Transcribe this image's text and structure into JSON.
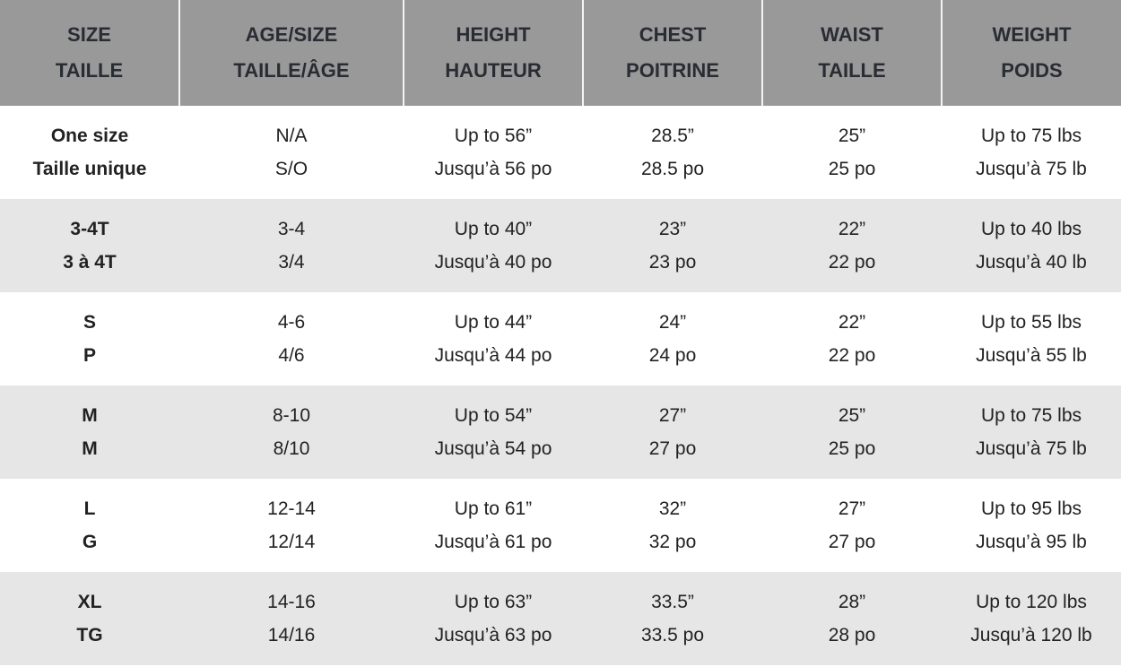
{
  "headers": [
    {
      "en": "SIZE",
      "fr": "TAILLE"
    },
    {
      "en": "AGE/SIZE",
      "fr": "TAILLE/ÂGE"
    },
    {
      "en": "HEIGHT",
      "fr": "HAUTEUR"
    },
    {
      "en": "CHEST",
      "fr": "POITRINE"
    },
    {
      "en": "WAIST",
      "fr": "TAILLE"
    },
    {
      "en": "WEIGHT",
      "fr": "POIDS"
    }
  ],
  "rows": [
    [
      {
        "en": "One size",
        "fr": "Taille unique"
      },
      {
        "en": "N/A",
        "fr": "S/O"
      },
      {
        "en": "Up to 56”",
        "fr": "Jusqu’à 56 po"
      },
      {
        "en": "28.5”",
        "fr": "28.5 po"
      },
      {
        "en": "25”",
        "fr": "25 po"
      },
      {
        "en": "Up to 75 lbs",
        "fr": "Jusqu’à 75 lb"
      }
    ],
    [
      {
        "en": "3-4T",
        "fr": "3 à 4T"
      },
      {
        "en": "3-4",
        "fr": "3/4"
      },
      {
        "en": "Up to 40”",
        "fr": "Jusqu’à 40 po"
      },
      {
        "en": "23”",
        "fr": "23 po"
      },
      {
        "en": "22”",
        "fr": "22 po"
      },
      {
        "en": "Up to 40 lbs",
        "fr": "Jusqu’à 40 lb"
      }
    ],
    [
      {
        "en": "S",
        "fr": "P"
      },
      {
        "en": "4-6",
        "fr": "4/6"
      },
      {
        "en": "Up to 44”",
        "fr": "Jusqu’à 44 po"
      },
      {
        "en": "24”",
        "fr": "24 po"
      },
      {
        "en": "22”",
        "fr": "22 po"
      },
      {
        "en": "Up to 55 lbs",
        "fr": "Jusqu’à 55 lb"
      }
    ],
    [
      {
        "en": "M",
        "fr": "M"
      },
      {
        "en": "8-10",
        "fr": "8/10"
      },
      {
        "en": "Up to 54”",
        "fr": "Jusqu’à 54 po"
      },
      {
        "en": "27”",
        "fr": "27 po"
      },
      {
        "en": "25”",
        "fr": "25 po"
      },
      {
        "en": "Up to 75 lbs",
        "fr": "Jusqu’à 75 lb"
      }
    ],
    [
      {
        "en": "L",
        "fr": "G"
      },
      {
        "en": "12-14",
        "fr": "12/14"
      },
      {
        "en": "Up to 61”",
        "fr": "Jusqu’à 61 po"
      },
      {
        "en": "32”",
        "fr": "32 po"
      },
      {
        "en": "27”",
        "fr": "27 po"
      },
      {
        "en": "Up to 95 lbs",
        "fr": "Jusqu’à 95 lb"
      }
    ],
    [
      {
        "en": "XL",
        "fr": "TG"
      },
      {
        "en": "14-16",
        "fr": "14/16"
      },
      {
        "en": "Up to 63”",
        "fr": "Jusqu’à 63 po"
      },
      {
        "en": "33.5”",
        "fr": "33.5 po"
      },
      {
        "en": "28”",
        "fr": "28 po"
      },
      {
        "en": "Up to 120 lbs",
        "fr": "Jusqu’à 120 lb"
      }
    ]
  ]
}
